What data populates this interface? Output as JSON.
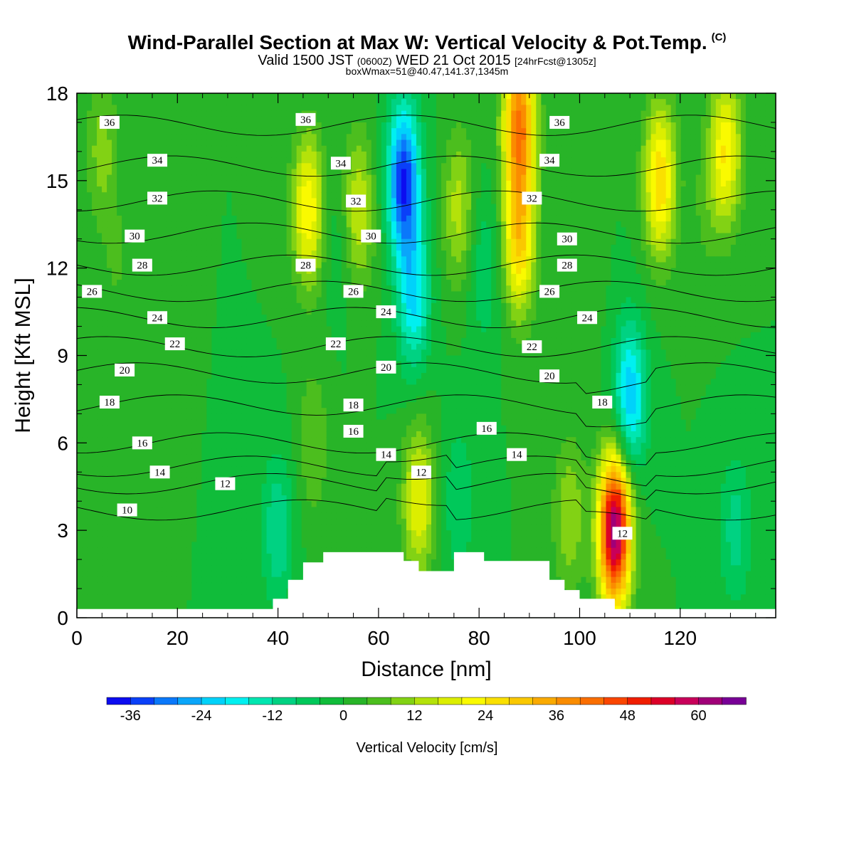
{
  "header": {
    "title": "Wind-Parallel Section at Max W: Vertical Velocity & Pot.Temp.",
    "copyright": "(C)",
    "valid_prefix": "Valid 1500 JST",
    "valid_utc": "(0600Z)",
    "valid_date": "WED 21 Oct 2015",
    "forecast": "[24hrFcst@1305z]",
    "box_info": "boxWmax=51@40.47,141.37,1345m"
  },
  "chart_data": {
    "type": "heatmap",
    "xlabel": "Distance [nm]",
    "ylabel": "Height [Kft MSL]",
    "xlim": [
      0,
      139
    ],
    "ylim": [
      0,
      18
    ],
    "x_ticks": [
      "0",
      "20",
      "40",
      "60",
      "80",
      "100",
      "120"
    ],
    "y_ticks": [
      "0",
      "3",
      "6",
      "9",
      "12",
      "15",
      "18"
    ],
    "colorbar": {
      "label": "Vertical Velocity [cm/s]",
      "ticks": [
        "-36",
        "-24",
        "-12",
        "0",
        "12",
        "24",
        "36",
        "48",
        "60"
      ],
      "levels": [
        -40,
        -36,
        -32,
        -28,
        -24,
        -20,
        -16,
        -12,
        -8,
        -4,
        0,
        4,
        8,
        12,
        16,
        20,
        24,
        28,
        32,
        36,
        40,
        44,
        48,
        52,
        56,
        60,
        64,
        68
      ],
      "colors": [
        "#0c0cf0",
        "#0a40f8",
        "#0a78fa",
        "#0aa6fa",
        "#00d2fa",
        "#00f0f0",
        "#00e6b0",
        "#00d282",
        "#00c85a",
        "#10bc3a",
        "#28b428",
        "#4cbe1e",
        "#82d214",
        "#b4e20a",
        "#dcee00",
        "#fafa00",
        "#fae000",
        "#fac800",
        "#faaa00",
        "#fa8c00",
        "#fa6e00",
        "#fa4600",
        "#f01e00",
        "#dc0028",
        "#c8005a",
        "#a00078",
        "#780096"
      ]
    },
    "w_cells": [
      {
        "x": 5,
        "y": 16,
        "w": 10
      },
      {
        "x": 8,
        "y": 12,
        "w": 4
      },
      {
        "x": 18,
        "y": 7,
        "w": 2
      },
      {
        "x": 31,
        "y": 2.5,
        "w": -2
      },
      {
        "x": 40,
        "y": 3,
        "w": -12
      },
      {
        "x": 46,
        "y": 14,
        "w": 24
      },
      {
        "x": 47,
        "y": 6,
        "w": 8
      },
      {
        "x": 52,
        "y": 13,
        "w": -4
      },
      {
        "x": 56,
        "y": 14,
        "w": 16
      },
      {
        "x": 65,
        "y": 15,
        "w": -36
      },
      {
        "x": 67,
        "y": 11,
        "w": -20
      },
      {
        "x": 68,
        "y": 4,
        "w": 20
      },
      {
        "x": 76,
        "y": 14,
        "w": 14
      },
      {
        "x": 76,
        "y": 4,
        "w": -8
      },
      {
        "x": 81,
        "y": 12,
        "w": -8
      },
      {
        "x": 88,
        "y": 17,
        "w": 40
      },
      {
        "x": 88,
        "y": 13,
        "w": 28
      },
      {
        "x": 98,
        "y": 3.5,
        "w": 12
      },
      {
        "x": 101,
        "y": 12,
        "w": 4
      },
      {
        "x": 107,
        "y": 3,
        "w": 64
      },
      {
        "x": 110,
        "y": 7.5,
        "w": -24
      },
      {
        "x": 116,
        "y": 15,
        "w": 28
      },
      {
        "x": 125,
        "y": 14,
        "w": 4
      },
      {
        "x": 129,
        "y": 16,
        "w": 24
      },
      {
        "x": 131,
        "y": 3,
        "w": -10
      }
    ],
    "theta_contours": [
      {
        "level": "10",
        "base": 3.7
      },
      {
        "level": "12",
        "base": 4.6
      },
      {
        "level": "14",
        "base": 5.2
      },
      {
        "level": "16",
        "base": 6.0
      },
      {
        "level": "18",
        "base": 7.3
      },
      {
        "level": "20",
        "base": 8.4
      },
      {
        "level": "22",
        "base": 9.3
      },
      {
        "level": "24",
        "base": 10.3
      },
      {
        "level": "26",
        "base": 11.2
      },
      {
        "level": "28",
        "base": 12.1
      },
      {
        "level": "30",
        "base": 13.2
      },
      {
        "level": "32",
        "base": 14.3
      },
      {
        "level": "34",
        "base": 15.5
      },
      {
        "level": "36",
        "base": 16.9
      }
    ],
    "theta_labels": [
      {
        "text": "36",
        "x": 6.5,
        "y": 17.0
      },
      {
        "text": "36",
        "x": 45.5,
        "y": 17.1
      },
      {
        "text": "36",
        "x": 96,
        "y": 17.0
      },
      {
        "text": "34",
        "x": 16,
        "y": 15.7
      },
      {
        "text": "34",
        "x": 52.5,
        "y": 15.6
      },
      {
        "text": "34",
        "x": 94,
        "y": 15.7
      },
      {
        "text": "32",
        "x": 16,
        "y": 14.4
      },
      {
        "text": "32",
        "x": 55.5,
        "y": 14.3
      },
      {
        "text": "32",
        "x": 90.5,
        "y": 14.4
      },
      {
        "text": "30",
        "x": 11.5,
        "y": 13.1
      },
      {
        "text": "30",
        "x": 58.5,
        "y": 13.1
      },
      {
        "text": "30",
        "x": 97.5,
        "y": 13.0
      },
      {
        "text": "28",
        "x": 13,
        "y": 12.1
      },
      {
        "text": "28",
        "x": 45.5,
        "y": 12.1
      },
      {
        "text": "28",
        "x": 97.5,
        "y": 12.1
      },
      {
        "text": "26",
        "x": 3,
        "y": 11.2
      },
      {
        "text": "26",
        "x": 55,
        "y": 11.2
      },
      {
        "text": "26",
        "x": 94,
        "y": 11.2
      },
      {
        "text": "24",
        "x": 16,
        "y": 10.3
      },
      {
        "text": "24",
        "x": 61.5,
        "y": 10.5
      },
      {
        "text": "24",
        "x": 101.5,
        "y": 10.3
      },
      {
        "text": "22",
        "x": 19.5,
        "y": 9.4
      },
      {
        "text": "22",
        "x": 51.5,
        "y": 9.4
      },
      {
        "text": "22",
        "x": 90.5,
        "y": 9.3
      },
      {
        "text": "20",
        "x": 9.5,
        "y": 8.5
      },
      {
        "text": "20",
        "x": 61.5,
        "y": 8.6
      },
      {
        "text": "20",
        "x": 94,
        "y": 8.3
      },
      {
        "text": "18",
        "x": 6.5,
        "y": 7.4
      },
      {
        "text": "18",
        "x": 55,
        "y": 7.3
      },
      {
        "text": "18",
        "x": 104.5,
        "y": 7.4
      },
      {
        "text": "16",
        "x": 13,
        "y": 6.0
      },
      {
        "text": "16",
        "x": 55,
        "y": 6.4
      },
      {
        "text": "16",
        "x": 81.5,
        "y": 6.5
      },
      {
        "text": "14",
        "x": 16.5,
        "y": 5.0
      },
      {
        "text": "14",
        "x": 61.5,
        "y": 5.6
      },
      {
        "text": "14",
        "x": 87.5,
        "y": 5.6
      },
      {
        "text": "12",
        "x": 29.5,
        "y": 4.6
      },
      {
        "text": "12",
        "x": 68.5,
        "y": 5.0
      },
      {
        "text": "12",
        "x": 108.5,
        "y": 2.9
      },
      {
        "text": "10",
        "x": 10,
        "y": 3.7
      }
    ],
    "terrain": [
      [
        0,
        0.3
      ],
      [
        39,
        0.3
      ],
      [
        39,
        0.65
      ],
      [
        42,
        0.65
      ],
      [
        42,
        1.3
      ],
      [
        45,
        1.3
      ],
      [
        45,
        1.9
      ],
      [
        49,
        1.9
      ],
      [
        49,
        2.25
      ],
      [
        65,
        2.25
      ],
      [
        65,
        1.95
      ],
      [
        68,
        1.95
      ],
      [
        68,
        1.6
      ],
      [
        75,
        1.6
      ],
      [
        75,
        2.25
      ],
      [
        81,
        2.25
      ],
      [
        81,
        1.95
      ],
      [
        94,
        1.95
      ],
      [
        94,
        1.3
      ],
      [
        97,
        1.3
      ],
      [
        97,
        0.95
      ],
      [
        100,
        0.95
      ],
      [
        100,
        0.65
      ],
      [
        107,
        0.65
      ],
      [
        107,
        0.3
      ],
      [
        139,
        0.3
      ]
    ]
  }
}
